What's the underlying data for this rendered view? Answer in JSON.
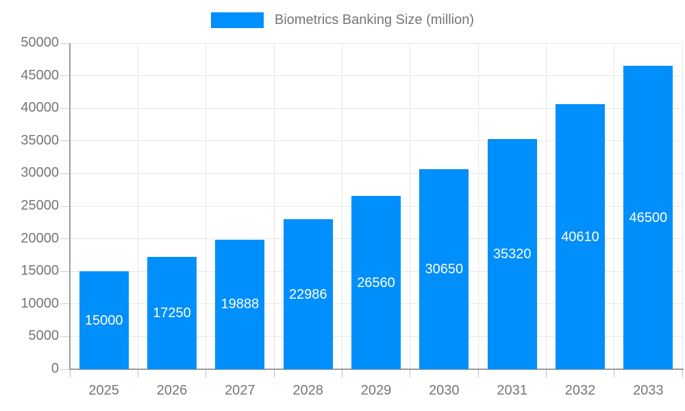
{
  "legend": {
    "label": "Biometrics Banking Size (million)"
  },
  "colors": {
    "bar": "#008FFB",
    "axis_line": "#9a9a9a",
    "grid_line": "#e7e7e7",
    "tick": "#cccccc",
    "axis_text": "#757575",
    "value_text": "#ffffff"
  },
  "chart_data": {
    "type": "bar",
    "title": "Biometrics Banking Size (million)",
    "categories": [
      "2025",
      "2026",
      "2027",
      "2028",
      "2029",
      "2030",
      "2031",
      "2032",
      "2033"
    ],
    "values": [
      15000,
      17250,
      19888,
      22986,
      26560,
      30650,
      35320,
      40610,
      46500
    ],
    "xlabel": "",
    "ylabel": "",
    "ylim": [
      0,
      50000
    ],
    "ytick_step": 5000,
    "ytick_labels": [
      "0",
      "5000",
      "10000",
      "15000",
      "20000",
      "25000",
      "30000",
      "35000",
      "40000",
      "45000",
      "50000"
    ],
    "grid": true,
    "legend_position": "top",
    "value_label_position": "inside-center"
  }
}
